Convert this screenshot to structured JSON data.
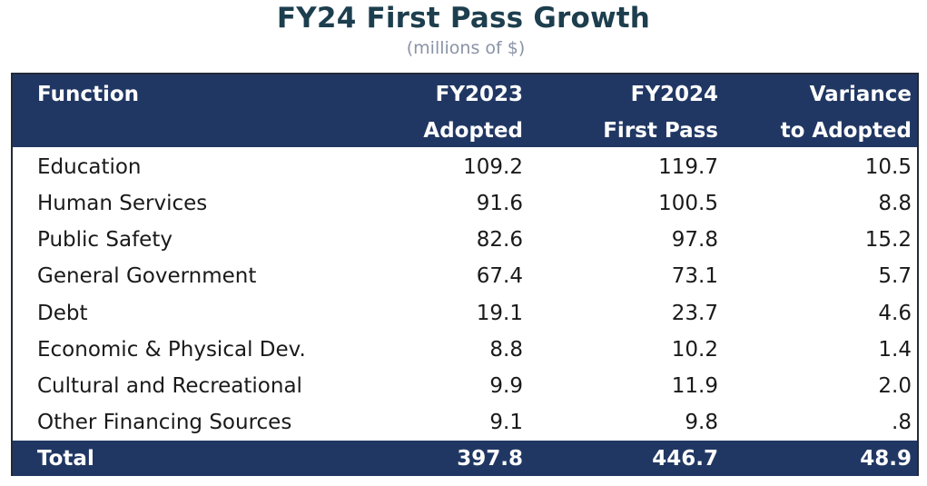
{
  "title": "FY24 First Pass Growth",
  "subtitle": "(millions of $)",
  "columns": {
    "function": "Function",
    "adopted_line1": "FY2023",
    "adopted_line2": "Adopted",
    "firstpass_line1": "FY2024",
    "firstpass_line2": "First Pass",
    "variance_line1": "Variance",
    "variance_line2": "to Adopted"
  },
  "rows": [
    {
      "function": "Education",
      "fy2023": "109.2",
      "fy2024": "119.7",
      "variance": "10.5"
    },
    {
      "function": "Human Services",
      "fy2023": "91.6",
      "fy2024": "100.5",
      "variance": "8.8"
    },
    {
      "function": "Public Safety",
      "fy2023": "82.6",
      "fy2024": "97.8",
      "variance": "15.2"
    },
    {
      "function": "General Government",
      "fy2023": "67.4",
      "fy2024": "73.1",
      "variance": "5.7"
    },
    {
      "function": "Debt",
      "fy2023": "19.1",
      "fy2024": "23.7",
      "variance": "4.6"
    },
    {
      "function": "Economic & Physical Dev.",
      "fy2023": "8.8",
      "fy2024": "10.2",
      "variance": "1.4"
    },
    {
      "function": "Cultural and Recreational",
      "fy2023": "9.9",
      "fy2024": "11.9",
      "variance": "2.0"
    },
    {
      "function": "Other Financing Sources",
      "fy2023": "9.1",
      "fy2024": "9.8",
      "variance": ".8"
    }
  ],
  "total": {
    "label": "Total",
    "fy2023": "397.8",
    "fy2024": "446.7",
    "variance": "48.9"
  },
  "colors": {
    "header_bg": "#213763",
    "title": "#1d3e4e",
    "subtitle": "#8a93a6"
  }
}
